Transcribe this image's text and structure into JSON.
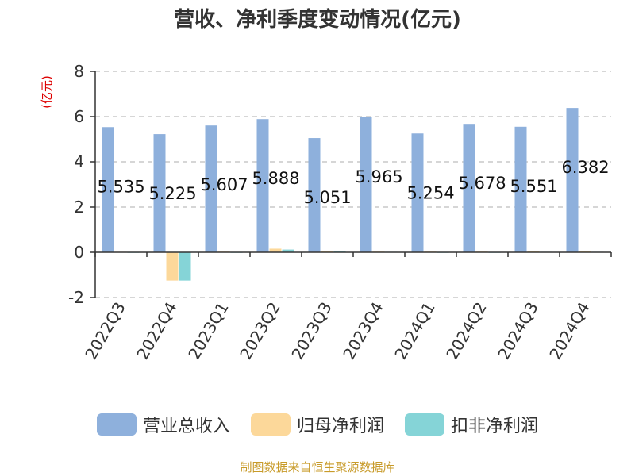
{
  "chart_data": {
    "type": "bar",
    "title": "营收、净利季度变动情况(亿元)",
    "ylabel": "(亿元)",
    "ylim": [
      -2,
      8
    ],
    "yticks": [
      -2,
      0,
      2,
      4,
      6,
      8
    ],
    "categories": [
      "2022Q3",
      "2022Q4",
      "2023Q1",
      "2023Q2",
      "2023Q3",
      "2023Q4",
      "2024Q1",
      "2024Q2",
      "2024Q3",
      "2024Q4"
    ],
    "series": [
      {
        "name": "营业总收入",
        "color": "#8eb0dc",
        "values": [
          5.535,
          5.225,
          5.607,
          5.888,
          5.051,
          5.965,
          5.254,
          5.678,
          5.551,
          6.382
        ]
      },
      {
        "name": "归母净利润",
        "color": "#fcd89a",
        "values": [
          0.02,
          -1.25,
          0.03,
          0.16,
          0.06,
          0.03,
          0.03,
          0.03,
          0.04,
          0.06
        ]
      },
      {
        "name": "扣非净利润",
        "color": "#85d4d7",
        "values": [
          0.01,
          -1.25,
          0.01,
          0.12,
          0.04,
          0.02,
          0.01,
          0.01,
          0.02,
          0.02
        ]
      }
    ],
    "data_labels": [
      "5.535",
      "5.225",
      "5.607",
      "5.888",
      "5.051",
      "5.965",
      "5.254",
      "5.678",
      "5.551",
      "6.382"
    ],
    "grid": true,
    "legend": "bottom"
  },
  "source": "制图数据来自恒生聚源数据库"
}
